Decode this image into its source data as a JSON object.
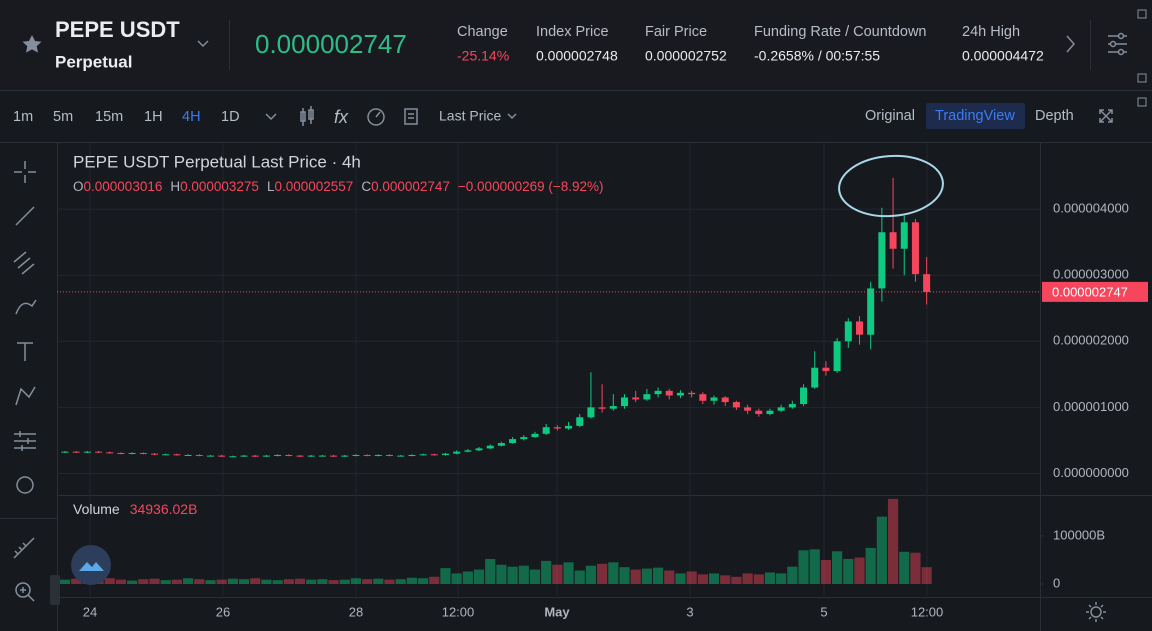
{
  "header": {
    "symbol": "PEPE USDT",
    "contract": "Perpetual",
    "last_price": "0.000002747",
    "stats": [
      {
        "label": "Change",
        "value": "-25.14%"
      },
      {
        "label": "Index Price",
        "value": "0.000002748"
      },
      {
        "label": "Fair Price",
        "value": "0.000002752"
      },
      {
        "label": "Funding Rate / Countdown",
        "value": "-0.2658% / 00:57:55"
      },
      {
        "label": "24h High",
        "value": "0.000004472"
      }
    ]
  },
  "toolbar": {
    "intervals": [
      "1m",
      "5m",
      "15m",
      "1H",
      "4H",
      "1D"
    ],
    "price_type": "Last Price",
    "views": [
      "Original",
      "TradingView",
      "Depth"
    ]
  },
  "chart_data": {
    "type": "candlestick",
    "title": "PEPE USDT Perpetual Last Price · 4h",
    "legend": [
      {
        "label": "O",
        "value": "0.000003016"
      },
      {
        "label": "H",
        "value": "0.000003275"
      },
      {
        "label": "L",
        "value": "0.000002557"
      },
      {
        "label": "C",
        "value": "0.000002747"
      }
    ],
    "legend_change": "−0.000000269 (−8.92%)",
    "up_color": "#0ecb81",
    "down_color": "#f6465d",
    "grid": true,
    "x_labels": [
      "24",
      "26",
      "28",
      "12:00",
      "May",
      "3",
      "5",
      "12:00"
    ],
    "ylim": [
      -2.5e-07,
      5e-06
    ],
    "yticks": [
      {
        "value": 4e-06,
        "label": "0.000004000"
      },
      {
        "value": 3e-06,
        "label": "0.000003000"
      },
      {
        "value": 2e-06,
        "label": "0.000002000"
      },
      {
        "value": 1e-06,
        "label": "0.000001000"
      },
      {
        "value": 0,
        "label": "0.000000000"
      }
    ],
    "last_price": {
      "value": 2.747e-06,
      "label": "0.000002747"
    },
    "open": [
      3.2e-07,
      3.3e-07,
      3.2e-07,
      3.3e-07,
      3.2e-07,
      3.1e-07,
      3e-07,
      3.1e-07,
      3e-07,
      2.9e-07,
      2.9e-07,
      2.8e-07,
      2.8e-07,
      2.7e-07,
      2.7e-07,
      2.6e-07,
      2.6e-07,
      2.7e-07,
      2.6e-07,
      2.7e-07,
      2.8e-07,
      2.7e-07,
      2.6e-07,
      2.7e-07,
      2.7e-07,
      2.6e-07,
      2.7e-07,
      2.8e-07,
      2.7e-07,
      2.8e-07,
      2.7e-07,
      2.7e-07,
      2.8e-07,
      2.9e-07,
      2.8e-07,
      3e-07,
      3.3e-07,
      3.5e-07,
      3.8e-07,
      4.2e-07,
      4.6e-07,
      5.2e-07,
      5.5e-07,
      6e-07,
      7e-07,
      6.8e-07,
      7.2e-07,
      8.5e-07,
      1e-06,
      9.8e-07,
      1.02e-06,
      1.15e-06,
      1.12e-06,
      1.2e-06,
      1.25e-06,
      1.18e-06,
      1.22e-06,
      1.2e-06,
      1.1e-06,
      1.15e-06,
      1.08e-06,
      1e-06,
      9.5e-07,
      9e-07,
      9.5e-07,
      1e-06,
      1.05e-06,
      1.3e-06,
      1.6e-06,
      1.55e-06,
      2e-06,
      2.3e-06,
      2.1e-06,
      2.8e-06,
      3.65e-06,
      3.4e-06,
      3.8e-06,
      3.016e-06
    ],
    "high": [
      3.4e-07,
      3.4e-07,
      3.4e-07,
      3.4e-07,
      3.3e-07,
      3.2e-07,
      3.2e-07,
      3.2e-07,
      3.1e-07,
      3e-07,
      3e-07,
      2.9e-07,
      2.9e-07,
      2.8e-07,
      2.8e-07,
      2.7e-07,
      2.8e-07,
      2.8e-07,
      2.8e-07,
      2.9e-07,
      2.9e-07,
      2.8e-07,
      2.8e-07,
      2.8e-07,
      2.8e-07,
      2.8e-07,
      2.9e-07,
      2.9e-07,
      2.9e-07,
      2.9e-07,
      2.8e-07,
      2.9e-07,
      3e-07,
      3e-07,
      3.1e-07,
      3.5e-07,
      3.7e-07,
      4e-07,
      4.4e-07,
      4.8e-07,
      5.5e-07,
      5.8e-07,
      6.3e-07,
      7.5e-07,
      7.3e-07,
      7.8e-07,
      9e-07,
      1.53e-06,
      1.35e-06,
      1.2e-06,
      1.2e-06,
      1.25e-06,
      1.28e-06,
      1.3e-06,
      1.28e-06,
      1.26e-06,
      1.25e-06,
      1.23e-06,
      1.18e-06,
      1.17e-06,
      1.1e-06,
      1.04e-06,
      9.8e-07,
      9.8e-07,
      1.04e-06,
      1.1e-06,
      1.35e-06,
      1.85e-06,
      1.7e-06,
      2.05e-06,
      2.35e-06,
      2.38e-06,
      2.9e-06,
      4.02e-06,
      4.472e-06,
      3.9e-06,
      3.85e-06,
      3.275e-06
    ],
    "low": [
      3.1e-07,
      3.1e-07,
      3.1e-07,
      3.1e-07,
      3e-07,
      2.9e-07,
      2.9e-07,
      2.9e-07,
      2.8e-07,
      2.8e-07,
      2.7e-07,
      2.7e-07,
      2.6e-07,
      2.6e-07,
      2.5e-07,
      2.5e-07,
      2.5e-07,
      2.5e-07,
      2.5e-07,
      2.6e-07,
      2.6e-07,
      2.5e-07,
      2.5e-07,
      2.6e-07,
      2.5e-07,
      2.5e-07,
      2.6e-07,
      2.6e-07,
      2.6e-07,
      2.6e-07,
      2.6e-07,
      2.6e-07,
      2.7e-07,
      2.7e-07,
      2.7e-07,
      2.9e-07,
      3.2e-07,
      3.4e-07,
      3.7e-07,
      4.1e-07,
      4.5e-07,
      5e-07,
      5.4e-07,
      5.8e-07,
      6.5e-07,
      6.6e-07,
      7e-07,
      8.3e-07,
      9.2e-07,
      9.5e-07,
      9.8e-07,
      1.08e-06,
      1.1e-06,
      1.15e-06,
      1.12e-06,
      1.14e-06,
      1.15e-06,
      1.05e-06,
      1.04e-06,
      1.02e-06,
      9.6e-07,
      9e-07,
      8.6e-07,
      8.8e-07,
      9.3e-07,
      9.8e-07,
      1.02e-06,
      1.28e-06,
      1.48e-06,
      1.52e-06,
      1.9e-06,
      1.95e-06,
      1.88e-06,
      2.6e-06,
      3.1e-06,
      3e-06,
      2.9e-06,
      2.557e-06
    ],
    "close": [
      3.3e-07,
      3.2e-07,
      3.3e-07,
      3.2e-07,
      3.1e-07,
      3e-07,
      3.1e-07,
      3e-07,
      2.9e-07,
      2.9e-07,
      2.8e-07,
      2.8e-07,
      2.7e-07,
      2.7e-07,
      2.6e-07,
      2.6e-07,
      2.7e-07,
      2.6e-07,
      2.7e-07,
      2.8e-07,
      2.7e-07,
      2.6e-07,
      2.7e-07,
      2.7e-07,
      2.6e-07,
      2.7e-07,
      2.8e-07,
      2.7e-07,
      2.8e-07,
      2.7e-07,
      2.7e-07,
      2.8e-07,
      2.9e-07,
      2.8e-07,
      3e-07,
      3.3e-07,
      3.5e-07,
      3.8e-07,
      4.2e-07,
      4.6e-07,
      5.2e-07,
      5.5e-07,
      6e-07,
      7e-07,
      6.8e-07,
      7.2e-07,
      8.5e-07,
      1e-06,
      9.8e-07,
      1.02e-06,
      1.15e-06,
      1.12e-06,
      1.2e-06,
      1.25e-06,
      1.18e-06,
      1.22e-06,
      1.2e-06,
      1.1e-06,
      1.15e-06,
      1.08e-06,
      1e-06,
      9.5e-07,
      9e-07,
      9.5e-07,
      1e-06,
      1.05e-06,
      1.3e-06,
      1.6e-06,
      1.55e-06,
      2e-06,
      2.3e-06,
      2.1e-06,
      2.8e-06,
      3.65e-06,
      3.4e-06,
      3.8e-06,
      3.016e-06,
      2.747e-06
    ],
    "volume": {
      "label": "Volume",
      "value_label": "34936.02B",
      "ylim": [
        0,
        185000
      ],
      "yticks": [
        {
          "value": 100000,
          "label": "100000B"
        },
        0
      ],
      "values": [
        9000,
        11000,
        8000,
        10000,
        12000,
        9000,
        7000,
        10000,
        11000,
        8000,
        9000,
        12000,
        10000,
        8000,
        9000,
        11000,
        10000,
        12000,
        9000,
        8000,
        10000,
        11000,
        9000,
        10000,
        8000,
        9000,
        12000,
        10000,
        11000,
        9000,
        10000,
        13000,
        12000,
        15000,
        33000,
        22000,
        26000,
        30000,
        52000,
        40000,
        36000,
        38000,
        30000,
        48000,
        40000,
        45000,
        28000,
        38000,
        42000,
        45000,
        35000,
        30000,
        32000,
        34000,
        28000,
        22000,
        26000,
        20000,
        22000,
        18000,
        15000,
        22000,
        20000,
        24000,
        22000,
        36000,
        70000,
        72000,
        50000,
        68000,
        52000,
        55000,
        75000,
        140000,
        177000,
        67000,
        65000,
        34936.02
      ]
    }
  }
}
